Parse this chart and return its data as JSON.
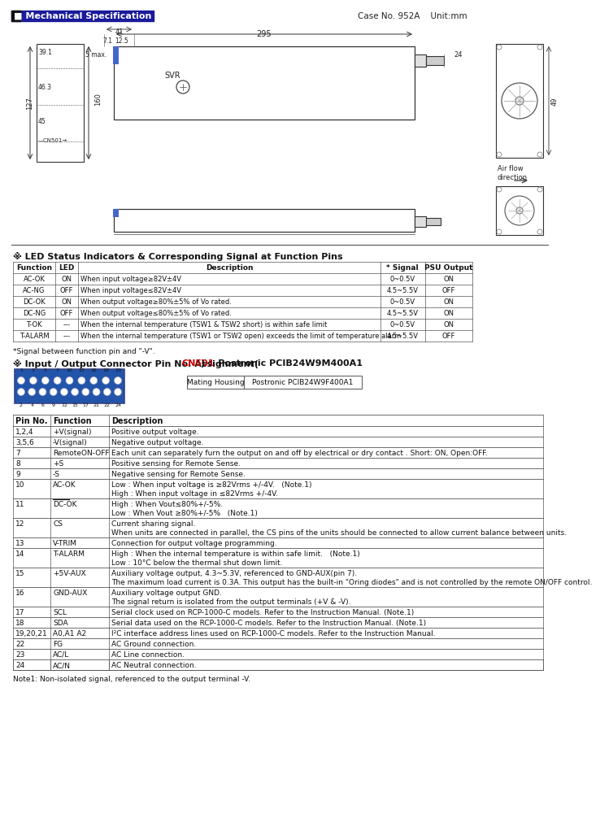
{
  "title_text": "Mechanical Specification",
  "case_info": "Case No. 952A    Unit:mm",
  "bg_color": "#ffffff",
  "title_bg": "#1a1a9a",
  "led_section_title": "※ LED Status Indicators & Corresponding Signal at Function Pins",
  "led_table_headers": [
    "Function",
    "LED",
    "Description",
    "* Signal",
    "PSU Output"
  ],
  "led_table_rows": [
    [
      "AC-OK",
      "ON",
      "When input voltage≥82V±4V",
      "0~0.5V",
      "ON"
    ],
    [
      "AC-NG",
      "OFF",
      "When input voltage≤82V±4V",
      "4.5~5.5V",
      "OFF"
    ],
    [
      "DC-OK",
      "ON",
      "When output voltage≥80%±5% of Vo rated.",
      "0~0.5V",
      "ON"
    ],
    [
      "DC-NG",
      "OFF",
      "When output voltage≤80%±5% of Vo rated.",
      "4.5~5.5V",
      "ON"
    ],
    [
      "T-OK",
      "---",
      "When the internal temperature (TSW1 & TSW2 short) is within safe limit",
      "0~0.5V",
      "ON"
    ],
    [
      "T-ALARM",
      "---",
      "When the internal temperature (TSW1 or TSW2 open) exceeds the limit of temperature alarm",
      "4.5~5.5V",
      "OFF"
    ]
  ],
  "signal_note": "*Signal between function pin and \"-V\".",
  "io_pre": "※ Input / Output Connector Pin No. Assignment(",
  "io_cn501": "CN501",
  "io_post": ") :  Postronic PCIB24W9M400A1",
  "mating_housing_label": "Mating Housing",
  "mating_housing_value": "Postronic PCIB24W9F400A1",
  "pin_table_headers": [
    "Pin No.",
    "Function",
    "Description"
  ],
  "pin_table_rows": [
    [
      "1,2,4",
      "+V(signal)",
      "Positive output voltage."
    ],
    [
      "3,5,6",
      "-V(signal)",
      "Negative output voltage."
    ],
    [
      "7",
      "RemoteON-OFF",
      "Each unit can separately furn the output on and off by electrical or dry contact . Short: ON, Open:OFF."
    ],
    [
      "8",
      "+S",
      "Positive sensing for Remote Sense."
    ],
    [
      "9",
      "-S",
      "Negative sensing for Remote Sense."
    ],
    [
      "10",
      "AC-OK",
      "Low : When input voltage is ≥82Vrms +/-4V.   (Note.1)\nHigh : When input voltage in ≤82Vrms +/-4V."
    ],
    [
      "11",
      "DC-OK",
      "High : When Vout≤80%+/-5%.\nLow : When Vout ≥80%+/-5%   (Note.1)"
    ],
    [
      "12",
      "CS",
      "Current sharing signal.\nWhen units are connected in parallel, the CS pins of the units should be connected to allow current balance between units."
    ],
    [
      "13",
      "V-TRIM",
      "Connection for output voltage programming."
    ],
    [
      "14",
      "T-ALARM",
      "High : When the internal temperature is within safe limit.   (Note.1)\nLow : 10°C below the thermal shut down limit."
    ],
    [
      "15",
      "+5V-AUX",
      "Auxiliary voltage output, 4.3~5.3V, referenced to GND-AUX(pin 7).\nThe maximum load current is 0.3A. This output has the built-in \"Oring diodes\" and is not controlled by the remote ON/OFF control."
    ],
    [
      "16",
      "GND-AUX",
      "Auxiliary voltage output GND.\nThe signal return is isolated from the output terminals (+V & -V)."
    ],
    [
      "17",
      "SCL",
      "Serial clock used on RCP-1000-C models. Refer to the Instruction Manual. (Note.1)"
    ],
    [
      "18",
      "SDA",
      "Serial data used on the RCP-1000-C models. Refer to the Instruction Manual. (Note.1)"
    ],
    [
      "19,20,21",
      "A0,A1 A2",
      "I²C interface address lines used on RCP-1000-C models. Refer to the Instruction Manual."
    ],
    [
      "22",
      "FG",
      "AC Ground connection."
    ],
    [
      "23",
      "AC/L",
      "AC Line connection."
    ],
    [
      "24",
      "AC/N",
      "AC Neutral connection."
    ]
  ],
  "note1": "Note1: Non-isolated signal, referenced to the output terminal -V.",
  "top_pin_labels": [
    "1",
    "3",
    "5",
    "7",
    "10",
    "13",
    "16",
    "18",
    "23"
  ],
  "bot_pin_labels": [
    "2",
    "4",
    "6",
    "9",
    "12",
    "15",
    "17",
    "21",
    "22",
    "24"
  ]
}
